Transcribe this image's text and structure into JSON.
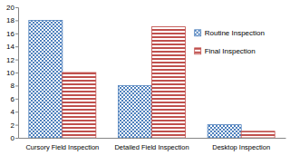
{
  "chart_data": {
    "type": "bar",
    "categories": [
      "Cursory Field Inspection",
      "Detailed Field Inspection",
      "Desktop Inspection"
    ],
    "series": [
      {
        "name": "Routine Inspection",
        "color": "#4f81bd",
        "values": [
          18,
          8,
          2
        ]
      },
      {
        "name": "Final Inspection",
        "color": "#c0504d",
        "values": [
          10,
          17,
          1
        ]
      }
    ],
    "ylim": [
      0,
      20
    ],
    "yticks": [
      0,
      2,
      4,
      6,
      8,
      10,
      12,
      14,
      16,
      18,
      20
    ],
    "grid": false,
    "legend": "upper right"
  }
}
